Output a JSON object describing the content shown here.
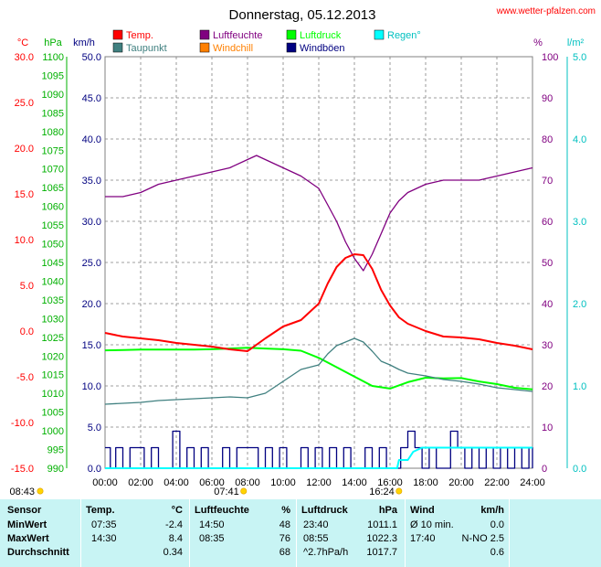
{
  "header": {
    "title": "Donnerstag, 05.12.2013",
    "website": "www.wetter-pfalzen.com"
  },
  "legend": [
    {
      "label": "Temp.",
      "color": "#ff0000"
    },
    {
      "label": "Luftfeuchte",
      "color": "#800080"
    },
    {
      "label": "Luftdruck",
      "color": "#00ff00"
    },
    {
      "label": "Regen°",
      "color": "#00ffff"
    },
    {
      "label": "Taupunkt",
      "color": "#408080"
    },
    {
      "label": "Windchill",
      "color": "#ff8000"
    },
    {
      "label": "Windböen",
      "color": "#000080"
    }
  ],
  "axes": {
    "temp": {
      "unit": "°C",
      "ticks": [
        "30.0",
        "25.0",
        "20.0",
        "15.0",
        "10.0",
        "5.0",
        "0.0",
        "-5.0",
        "-10.0",
        "-15.0"
      ],
      "color": "#ff0000"
    },
    "pressure": {
      "unit": "hPa",
      "ticks": [
        "1100",
        "1095",
        "1090",
        "1085",
        "1080",
        "1075",
        "1070",
        "1065",
        "1060",
        "1055",
        "1050",
        "1045",
        "1040",
        "1035",
        "1030",
        "1025",
        "1020",
        "1015",
        "1010",
        "1005",
        "1000",
        "995",
        "990"
      ],
      "color": "#00b000"
    },
    "wind": {
      "unit": "km/h",
      "ticks": [
        "50.0",
        "45.0",
        "40.0",
        "35.0",
        "30.0",
        "25.0",
        "20.0",
        "15.0",
        "10.0",
        "5.0",
        "0.0"
      ],
      "color": "#000080"
    },
    "humidity": {
      "unit": "%",
      "ticks": [
        "100",
        "90",
        "80",
        "70",
        "60",
        "50",
        "40",
        "30",
        "20",
        "10",
        "0"
      ],
      "color": "#800080"
    },
    "rain": {
      "unit": "l/m²",
      "ticks": [
        "5.0",
        "4.0",
        "3.0",
        "2.0",
        "1.0",
        "0.0"
      ],
      "color": "#00c0c0"
    },
    "time_ticks": [
      "00:00",
      "02:00",
      "04:00",
      "06:00",
      "08:00",
      "10:00",
      "12:00",
      "14:00",
      "16:00",
      "18:00",
      "20:00",
      "22:00",
      "24:00"
    ]
  },
  "sun": {
    "sunrise": "08:43",
    "sunrise_hours": 8.72,
    "solar_noon": "07:41",
    "solar_noon_hours": 7.68,
    "sunset": "16:24",
    "sunset_hours": 16.4
  },
  "chart_data": {
    "type": "line",
    "title": "Donnerstag, 05.12.2013",
    "x_range": [
      0,
      24
    ],
    "series": [
      {
        "name": "Temp.",
        "axis": "temp",
        "color": "#ff0000",
        "ylim": [
          -15,
          30
        ],
        "x": [
          0,
          1,
          2,
          3,
          4,
          5,
          6,
          7,
          8,
          9,
          10,
          11,
          12,
          12.5,
          13,
          13.5,
          14,
          14.5,
          15,
          15.5,
          16,
          16.5,
          17,
          18,
          19,
          20,
          21,
          22,
          23,
          24
        ],
        "y": [
          -0.2,
          -0.6,
          -0.8,
          -1.0,
          -1.3,
          -1.5,
          -1.7,
          -2.0,
          -2.2,
          -0.8,
          0.5,
          1.2,
          3.0,
          5.2,
          7.0,
          8.0,
          8.4,
          8.3,
          6.8,
          4.5,
          2.8,
          1.5,
          0.8,
          0.0,
          -0.6,
          -0.7,
          -0.9,
          -1.3,
          -1.6,
          -2.0
        ]
      },
      {
        "name": "Taupunkt",
        "axis": "temp",
        "color": "#408080",
        "ylim": [
          -15,
          30
        ],
        "x": [
          0,
          1,
          2,
          3,
          4,
          5,
          6,
          7,
          8,
          9,
          10,
          11,
          12,
          12.5,
          13,
          13.5,
          14,
          14.5,
          15,
          15.5,
          16,
          16.5,
          17,
          18,
          19,
          20,
          21,
          22,
          23,
          24
        ],
        "y": [
          -8.0,
          -7.9,
          -7.8,
          -7.6,
          -7.5,
          -7.4,
          -7.3,
          -7.2,
          -7.3,
          -6.8,
          -5.5,
          -4.2,
          -3.7,
          -2.5,
          -1.6,
          -1.2,
          -0.8,
          -1.2,
          -2.2,
          -3.3,
          -3.7,
          -4.2,
          -4.6,
          -4.9,
          -5.3,
          -5.5,
          -5.8,
          -6.2,
          -6.4,
          -6.6
        ]
      },
      {
        "name": "Luftfeuchte",
        "axis": "humidity",
        "color": "#800080",
        "ylim": [
          0,
          100
        ],
        "x": [
          0,
          1,
          2,
          3,
          4,
          5,
          6,
          7,
          8,
          8.5,
          9,
          10,
          11,
          12,
          12.5,
          13,
          13.5,
          14,
          14.5,
          15,
          15.5,
          16,
          16.5,
          17,
          18,
          19,
          20,
          21,
          22,
          23,
          24
        ],
        "y": [
          66,
          66,
          67,
          69,
          70,
          71,
          72,
          73,
          75,
          76,
          75,
          73,
          71,
          68,
          64,
          60,
          55,
          51,
          48,
          52,
          57,
          62,
          65,
          67,
          69,
          70,
          70,
          70,
          71,
          72,
          73
        ]
      },
      {
        "name": "Luftdruck",
        "axis": "pressure",
        "color": "#00ff00",
        "ylim": [
          990,
          1100
        ],
        "x": [
          0,
          1,
          2,
          3,
          4,
          5,
          6,
          7,
          8,
          9,
          10,
          11,
          12,
          13,
          14,
          15,
          16,
          17,
          18,
          19,
          20,
          21,
          22,
          23,
          24
        ],
        "y": [
          1021.5,
          1021.6,
          1021.7,
          1021.7,
          1021.7,
          1021.7,
          1021.8,
          1022.0,
          1022.2,
          1022.0,
          1021.8,
          1021.4,
          1019.5,
          1017.0,
          1014.5,
          1012.0,
          1011.3,
          1013.0,
          1014.2,
          1014.0,
          1014.1,
          1013.2,
          1012.5,
          1011.5,
          1011.1
        ]
      },
      {
        "name": "Windböen",
        "axis": "wind",
        "color": "#000080",
        "ylim": [
          0,
          50
        ],
        "x": [
          0,
          0.3,
          0.6,
          1,
          1.4,
          1.8,
          2.2,
          2.6,
          3,
          3.4,
          3.8,
          4.2,
          4.6,
          5,
          5.4,
          5.8,
          6.2,
          6.6,
          7,
          7.4,
          7.8,
          8.2,
          8.6,
          9,
          9.4,
          9.8,
          10.2,
          10.6,
          11,
          11.4,
          11.8,
          12.2,
          12.6,
          13,
          13.4,
          13.8,
          14.2,
          14.6,
          15,
          15.4,
          15.8,
          16.2,
          16.6,
          17,
          17.4,
          17.8,
          18.2,
          18.6,
          19,
          19.4,
          19.8,
          20.2,
          20.6,
          21,
          21.4,
          21.8,
          22.2,
          22.6,
          23,
          23.4,
          23.8,
          24
        ],
        "y": [
          2.5,
          0,
          2.5,
          0,
          2.5,
          2.5,
          0,
          2.5,
          0,
          0,
          4.5,
          0,
          2.5,
          0,
          2.5,
          0,
          0,
          2.5,
          0,
          2.5,
          2.5,
          2.5,
          0,
          2.5,
          0,
          2.5,
          0,
          0,
          2.5,
          0,
          2.5,
          0,
          2.5,
          0,
          2.5,
          0,
          0,
          2.5,
          0,
          2.5,
          0,
          0,
          2.5,
          4.5,
          2.5,
          0,
          2.5,
          0,
          0,
          4.5,
          2.5,
          0,
          2.5,
          0,
          2.5,
          0,
          2.5,
          0,
          2.5,
          0,
          2.5,
          0
        ]
      },
      {
        "name": "Regen°",
        "axis": "rain",
        "color": "#00ffff",
        "ylim": [
          0,
          5
        ],
        "x": [
          0,
          16.4,
          16.5,
          17.0,
          17.3,
          17.8,
          24
        ],
        "y": [
          0,
          0,
          0.1,
          0.1,
          0.2,
          0.25,
          0.25
        ]
      }
    ]
  },
  "stats": {
    "headers": {
      "sensor": "Sensor",
      "temp": "Temp.",
      "temp_unit": "°C",
      "hum": "Luftfeuchte",
      "hum_unit": "%",
      "press": "Luftdruck",
      "press_unit": "hPa",
      "wind": "Wind",
      "wind_unit": "km/h"
    },
    "rows": [
      {
        "label": "MinWert",
        "t_time": "07:35",
        "t_val": "-2.4",
        "h_time": "14:50",
        "h_val": "48",
        "p_time": "23:40",
        "p_val": "1011.1",
        "w_time": "Ø 10 min.",
        "w_val": "0.0"
      },
      {
        "label": "MaxWert",
        "t_time": "14:30",
        "t_val": "8.4",
        "h_time": "08:35",
        "h_val": "76",
        "p_time": "08:55",
        "p_val": "1022.3",
        "w_time": "17:40",
        "w_val": "N-NO 2.5"
      },
      {
        "label": "Durchschnitt",
        "t_time": "",
        "t_val": "0.34",
        "h_time": "",
        "h_val": "68",
        "p_time": "^2.7hPa/h",
        "p_val": "1017.7",
        "w_time": "",
        "w_val": "0.6"
      }
    ]
  }
}
